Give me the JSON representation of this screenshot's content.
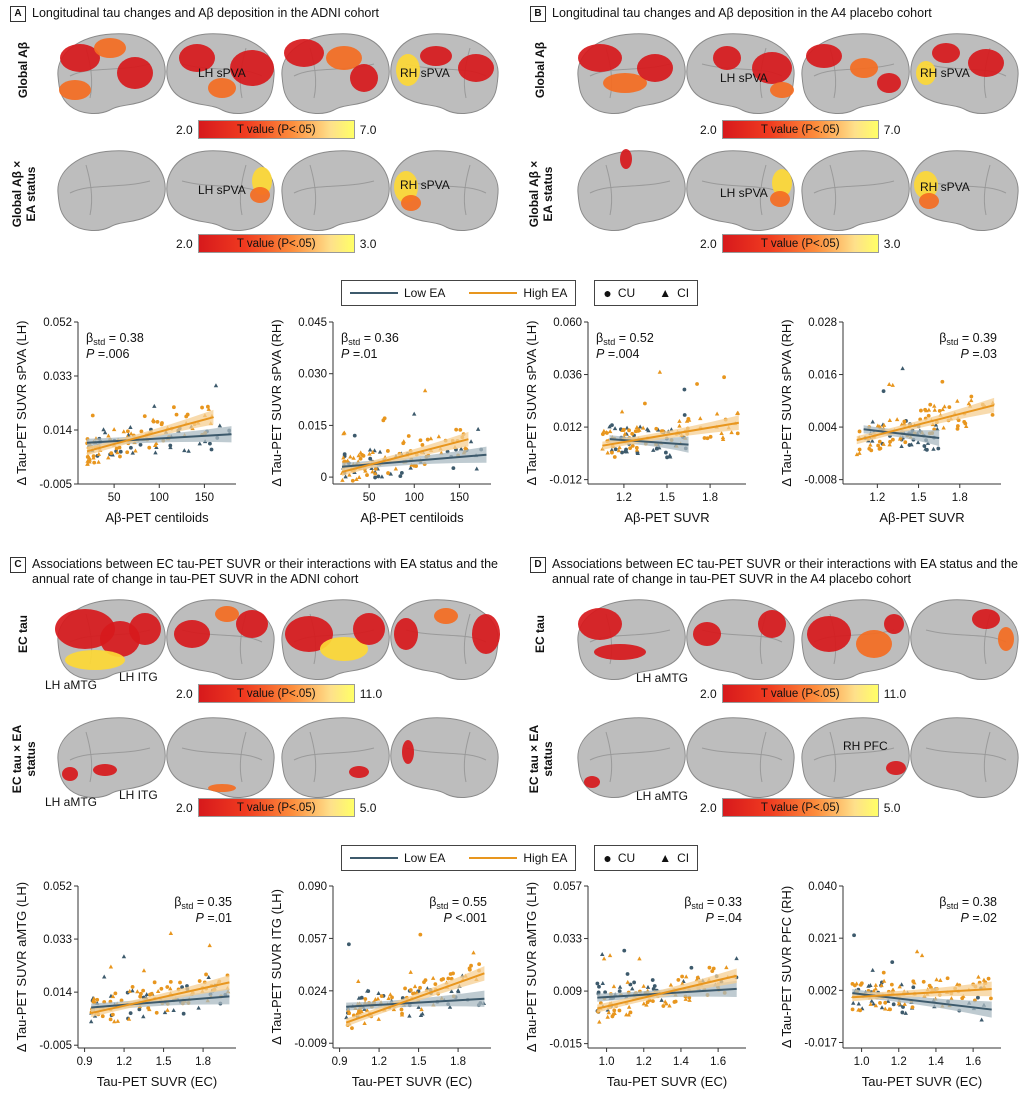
{
  "panels": {
    "A": {
      "letter": "A",
      "title": "Longitudinal tau changes and Aβ deposition in the ADNI cohort"
    },
    "B": {
      "letter": "B",
      "title": "Longitudinal tau changes and Aβ deposition in the A4 placebo cohort"
    },
    "C": {
      "letter": "C",
      "title": "Associations between EC tau-PET SUVR or their interactions with EA status and the annual rate of change in tau-PET SUVR in the ADNI cohort"
    },
    "D": {
      "letter": "D",
      "title": "Associations between EC tau-PET SUVR or their interactions with EA status and the annual rate of change in tau-PET SUVR in the A4 placebo cohort"
    }
  },
  "row_labels": {
    "global_ab": "Global Aβ",
    "global_ab_ea": "Global Aβ × EA status",
    "ec_tau": "EC tau",
    "ec_tau_ea": "EC tau × EA status"
  },
  "region_labels": {
    "lh_spva": "LH sPVA",
    "rh_spva": "RH sPVA",
    "lh_amtg": "LH aMTG",
    "lh_itg": "LH ITG",
    "rh_pfc": "RH PFC"
  },
  "colorbars": {
    "label": "T value (P<.05)",
    "a1": {
      "min": "2.0",
      "max": "7.0"
    },
    "a2": {
      "min": "2.0",
      "max": "3.0"
    },
    "b1": {
      "min": "2.0",
      "max": "7.0"
    },
    "b2": {
      "min": "2.0",
      "max": "3.0"
    },
    "c1": {
      "min": "2.0",
      "max": "11.0"
    },
    "c2": {
      "min": "2.0",
      "max": "5.0"
    },
    "d1": {
      "min": "2.0",
      "max": "11.0"
    },
    "d2": {
      "min": "2.0",
      "max": "5.0"
    }
  },
  "legend": {
    "low_ea": "Low EA",
    "high_ea": "High EA",
    "cu": "CU",
    "ci": "CI"
  },
  "colors": {
    "low_ea": "#3d5a6c",
    "high_ea": "#e8961e",
    "low_ea_band": "#a9b9c2",
    "high_ea_band": "#f6cf93",
    "cortex": "#bdbdbd",
    "activation_strong": "#d7191c",
    "activation_mid": "#f46d22",
    "activation_weak": "#fdd835"
  },
  "chart_data": [
    {
      "type": "scatter",
      "id": "a1",
      "xlabel": "Aβ-PET centiloids",
      "ylabel": "Δ Tau-PET SUVR sPVA (LH)",
      "xticks": [
        "50",
        "100",
        "150"
      ],
      "xlim": [
        10,
        185
      ],
      "yticks": [
        "-0.005",
        "0.014",
        "0.033",
        "0.052"
      ],
      "ylim": [
        -0.005,
        0.052
      ],
      "stat_beta": "0.38",
      "stat_p": "=.006",
      "stat_pos": "left",
      "series": [
        {
          "name": "Low EA",
          "fit": [
            [
              20,
              0.0095
            ],
            [
              180,
              0.0125
            ]
          ]
        },
        {
          "name": "High EA",
          "fit": [
            [
              20,
              0.0065
            ],
            [
              160,
              0.0185
            ]
          ]
        }
      ]
    },
    {
      "type": "scatter",
      "id": "a2",
      "xlabel": "Aβ-PET centiloids",
      "ylabel": "Δ Tau-PET SUVR sPVA (RH)",
      "xticks": [
        "50",
        "100",
        "150"
      ],
      "xlim": [
        10,
        185
      ],
      "yticks": [
        "0",
        "0.015",
        "0.030",
        "0.045"
      ],
      "ylim": [
        -0.002,
        0.045
      ],
      "stat_beta": "0.36",
      "stat_p": "=.01",
      "stat_pos": "left",
      "series": [
        {
          "name": "Low EA",
          "fit": [
            [
              20,
              0.003
            ],
            [
              180,
              0.0065
            ]
          ]
        },
        {
          "name": "High EA",
          "fit": [
            [
              20,
              0.0015
            ],
            [
              160,
              0.011
            ]
          ]
        }
      ]
    },
    {
      "type": "scatter",
      "id": "a3",
      "xlabel": "Aβ-PET SUVR",
      "ylabel": "Δ Tau-PET SUVR sPVA (LH)",
      "xticks": [
        "1.2",
        "1.5",
        "1.8"
      ],
      "xlim": [
        0.95,
        2.05
      ],
      "yticks": [
        "-0.012",
        "0.012",
        "0.036",
        "0.060"
      ],
      "ylim": [
        -0.014,
        0.06
      ],
      "stat_beta": "0.52",
      "stat_p": "=.004",
      "stat_pos": "left",
      "series": [
        {
          "name": "Low EA",
          "fit": [
            [
              1.1,
              0.0065
            ],
            [
              1.65,
              0.004
            ]
          ]
        },
        {
          "name": "High EA",
          "fit": [
            [
              1.05,
              0.0035
            ],
            [
              2.0,
              0.014
            ]
          ]
        }
      ]
    },
    {
      "type": "scatter",
      "id": "a4",
      "xlabel": "Aβ-PET SUVR",
      "ylabel": "Δ Tau-PET SUVR sPVA (RH)",
      "xticks": [
        "1.2",
        "1.5",
        "1.8"
      ],
      "xlim": [
        0.95,
        2.1
      ],
      "yticks": [
        "-0.008",
        "0.004",
        "0.016",
        "0.028"
      ],
      "ylim": [
        -0.009,
        0.028
      ],
      "stat_beta": "0.39",
      "stat_p": "=.03",
      "stat_pos": "right",
      "series": [
        {
          "name": "Low EA",
          "fit": [
            [
              1.1,
              0.0035
            ],
            [
              1.65,
              0.0015
            ]
          ]
        },
        {
          "name": "High EA",
          "fit": [
            [
              1.05,
              0.001
            ],
            [
              2.05,
              0.009
            ]
          ]
        }
      ]
    },
    {
      "type": "scatter",
      "id": "c1",
      "xlabel": "Tau-PET SUVR (EC)",
      "ylabel": "Δ Tau-PET SUVR aMTG (LH)",
      "xticks": [
        "0.9",
        "1.2",
        "1.5",
        "1.8"
      ],
      "xlim": [
        0.85,
        2.05
      ],
      "yticks": [
        "-0.005",
        "0.014",
        "0.033",
        "0.052"
      ],
      "ylim": [
        -0.006,
        0.052
      ],
      "stat_beta": "0.35",
      "stat_p": "=.01",
      "stat_pos": "right",
      "series": [
        {
          "name": "Low EA",
          "fit": [
            [
              0.95,
              0.0085
            ],
            [
              2.0,
              0.0125
            ]
          ]
        },
        {
          "name": "High EA",
          "fit": [
            [
              0.95,
              0.0065
            ],
            [
              2.0,
              0.0175
            ]
          ]
        }
      ]
    },
    {
      "type": "scatter",
      "id": "c2",
      "xlabel": "Tau-PET SUVR (EC)",
      "ylabel": "Δ Tau-PET SUVR ITG (LH)",
      "xticks": [
        "0.9",
        "1.2",
        "1.5",
        "1.8"
      ],
      "xlim": [
        0.85,
        2.05
      ],
      "yticks": [
        "-0.009",
        "0.024",
        "0.057",
        "0.090"
      ],
      "ylim": [
        -0.012,
        0.09
      ],
      "stat_beta": "0.55",
      "stat_p": "<.001",
      "stat_pos": "right",
      "series": [
        {
          "name": "Low EA",
          "fit": [
            [
              0.95,
              0.014
            ],
            [
              2.0,
              0.019
            ]
          ]
        },
        {
          "name": "High EA",
          "fit": [
            [
              0.95,
              0.004
            ],
            [
              2.0,
              0.035
            ]
          ]
        }
      ]
    },
    {
      "type": "scatter",
      "id": "d1",
      "xlabel": "Tau-PET SUVR (EC)",
      "ylabel": "Δ Tau-PET SUVR aMTG (LH)",
      "xticks": [
        "1.0",
        "1.2",
        "1.4",
        "1.6"
      ],
      "xlim": [
        0.9,
        1.75
      ],
      "yticks": [
        "-0.015",
        "0.009",
        "0.033",
        "0.057"
      ],
      "ylim": [
        -0.017,
        0.057
      ],
      "stat_beta": "0.33",
      "stat_p": "=.04",
      "stat_pos": "right",
      "series": [
        {
          "name": "Low EA",
          "fit": [
            [
              0.95,
              0.006
            ],
            [
              1.7,
              0.01
            ]
          ]
        },
        {
          "name": "High EA",
          "fit": [
            [
              0.95,
              0.001
            ],
            [
              1.7,
              0.016
            ]
          ]
        }
      ]
    },
    {
      "type": "scatter",
      "id": "d2",
      "xlabel": "Tau-PET SUVR (EC)",
      "ylabel": "Δ Tau-PET SUVR PFC (RH)",
      "xticks": [
        "1.0",
        "1.2",
        "1.4",
        "1.6"
      ],
      "xlim": [
        0.9,
        1.75
      ],
      "yticks": [
        "-0.017",
        "0.002",
        "0.021",
        "0.040"
      ],
      "ylim": [
        -0.019,
        0.04
      ],
      "stat_beta": "0.38",
      "stat_p": "=.02",
      "stat_pos": "right",
      "series": [
        {
          "name": "Low EA",
          "fit": [
            [
              0.95,
              0.001
            ],
            [
              1.7,
              -0.005
            ]
          ]
        },
        {
          "name": "High EA",
          "fit": [
            [
              0.95,
              -0.0005
            ],
            [
              1.7,
              0.0025
            ]
          ]
        }
      ]
    }
  ]
}
